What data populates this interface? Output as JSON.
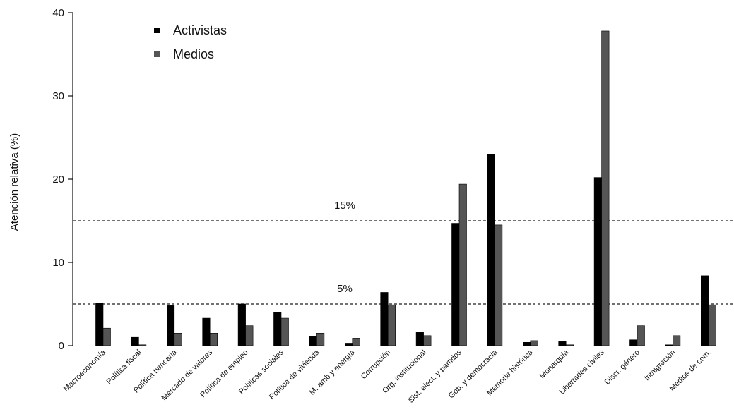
{
  "chart_data": {
    "type": "bar",
    "ylabel": "Atención relativa (%)",
    "ylim": [
      0,
      40
    ],
    "yticks": [
      0,
      10,
      20,
      30,
      40
    ],
    "grid": false,
    "legend_position": "top-left",
    "categories": [
      "Macroeconomía",
      "Política fiscal",
      "Política bancaria",
      "Mercado de valores",
      "Política de empleo",
      "Políticas sociales",
      "Política de vivienda",
      "M. amb y energía",
      "Corrupción",
      "Org. institucional",
      "Sist. elect. y partidos",
      "Gob. y democracia",
      "Memoria histórica",
      "Monarquía",
      "Libertades civiles",
      "Discr. género",
      "Inmigración",
      "Medios de com."
    ],
    "series": [
      {
        "name": "Activistas",
        "color": "#000000",
        "values": [
          5.1,
          1.0,
          4.8,
          3.3,
          5.0,
          4.0,
          1.1,
          0.3,
          6.4,
          1.6,
          14.7,
          23.0,
          0.4,
          0.5,
          20.2,
          0.7,
          0.1,
          8.4
        ]
      },
      {
        "name": "Medios",
        "color": "#555555",
        "values": [
          2.1,
          0.1,
          1.5,
          1.5,
          2.4,
          3.3,
          1.5,
          0.9,
          4.9,
          1.2,
          19.4,
          14.5,
          0.6,
          0.1,
          37.8,
          2.4,
          1.2,
          4.9
        ]
      }
    ],
    "reference_lines": [
      {
        "value": 15,
        "label": "15%"
      },
      {
        "value": 5,
        "label": "5%"
      }
    ]
  }
}
